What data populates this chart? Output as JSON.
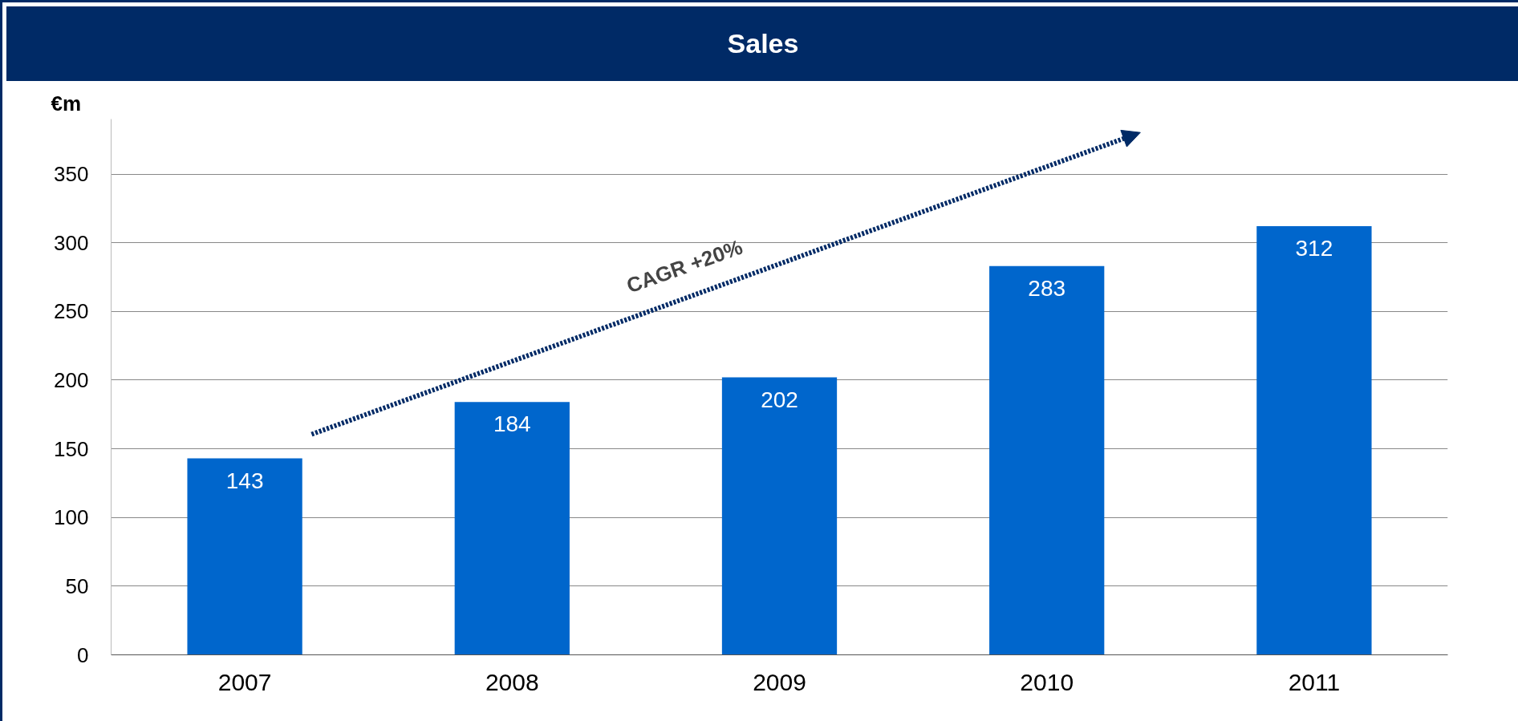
{
  "chart_data": {
    "type": "bar",
    "title": "Sales",
    "ylabel": "€m",
    "categories": [
      "2007",
      "2008",
      "2009",
      "2010",
      "2011"
    ],
    "values": [
      143,
      184,
      202,
      283,
      312
    ],
    "color": "#0066cc",
    "ylim": [
      0,
      390
    ],
    "yticks": [
      0,
      50,
      100,
      150,
      200,
      250,
      300,
      350
    ],
    "grid": "y",
    "data_labels": true,
    "annotations": [
      "CAGR +20%"
    ]
  }
}
